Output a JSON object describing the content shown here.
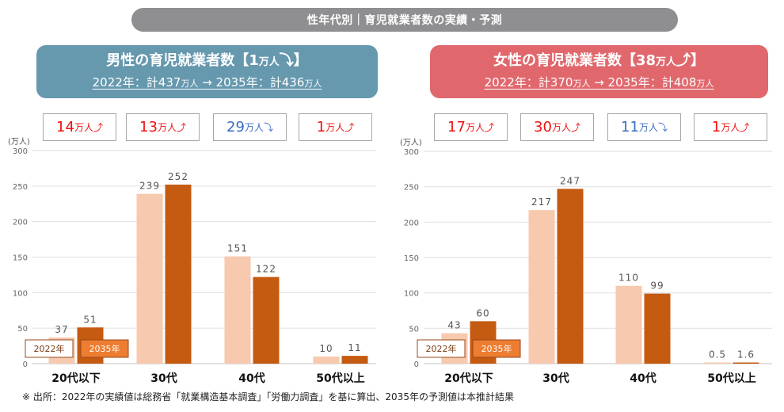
{
  "banner": {
    "title": "性年代別｜育児就業者数の実績・予測"
  },
  "colors": {
    "bar_2022": "#f7c9ae",
    "bar_2035": "#c55a11",
    "legend_2035_bg": "#ed7d31",
    "legend_border": "#9a4a1c",
    "up": "#ee1111",
    "down": "#3b6cc4",
    "male_header": "#6698ae",
    "female_header": "#e0686d",
    "banner": "#8f8f91"
  },
  "panels": [
    {
      "id": "male",
      "header": {
        "title_prefix": "男性の育児就業者数【",
        "title_value": "1",
        "title_unit": "万人",
        "title_arrow": "⤵",
        "title_suffix": "】",
        "sub_y1_label": "2022年：計",
        "sub_y1_value": "437",
        "sub_unit": "万人",
        "sub_arrow": " → ",
        "sub_y2_label": "2035年：計",
        "sub_y2_value": "436"
      },
      "changes": [
        {
          "value": "14",
          "unit": "万人",
          "arrow": "⤴",
          "direction": "up"
        },
        {
          "value": "13",
          "unit": "万人",
          "arrow": "⤴",
          "direction": "up"
        },
        {
          "value": "29",
          "unit": "万人",
          "arrow": "⤵",
          "direction": "down"
        },
        {
          "value": "1",
          "unit": "万人",
          "arrow": "⤴",
          "direction": "up"
        }
      ]
    },
    {
      "id": "female",
      "header": {
        "title_prefix": "女性の育児就業者数【",
        "title_value": "38",
        "title_unit": "万人",
        "title_arrow": "⤴",
        "title_suffix": "】",
        "sub_y1_label": "2022年：計",
        "sub_y1_value": "370",
        "sub_unit": "万人",
        "sub_arrow": " → ",
        "sub_y2_label": "2035年：計",
        "sub_y2_value": "408"
      },
      "changes": [
        {
          "value": "17",
          "unit": "万人",
          "arrow": "⤴",
          "direction": "up"
        },
        {
          "value": "30",
          "unit": "万人",
          "arrow": "⤴",
          "direction": "up"
        },
        {
          "value": "11",
          "unit": "万人",
          "arrow": "⤵",
          "direction": "down"
        },
        {
          "value": "1",
          "unit": "万人",
          "arrow": "⤴",
          "direction": "up"
        }
      ]
    }
  ],
  "chart_data": [
    {
      "type": "bar",
      "title": "男性の育児就業者数",
      "ylabel": "(万人)",
      "xlabel": "",
      "ylim": [
        0,
        300
      ],
      "yticks": [
        0,
        50,
        100,
        150,
        200,
        250,
        300
      ],
      "grid": true,
      "legend_position": "bottom-left",
      "categories": [
        "20代以下",
        "30代",
        "40代",
        "50代以上"
      ],
      "series": [
        {
          "name": "2022年",
          "values": [
            37,
            239,
            151,
            10
          ],
          "labels": [
            "37",
            "239",
            "151",
            "10"
          ]
        },
        {
          "name": "2035年",
          "values": [
            51,
            252,
            122,
            11
          ],
          "labels": [
            "51",
            "252",
            "122",
            "11"
          ]
        }
      ]
    },
    {
      "type": "bar",
      "title": "女性の育児就業者数",
      "ylabel": "(万人)",
      "xlabel": "",
      "ylim": [
        0,
        300
      ],
      "yticks": [
        0,
        50,
        100,
        150,
        200,
        250,
        300
      ],
      "grid": true,
      "legend_position": "bottom-left",
      "categories": [
        "20代以下",
        "30代",
        "40代",
        "50代以上"
      ],
      "series": [
        {
          "name": "2022年",
          "values": [
            43,
            217,
            110,
            0.5
          ],
          "labels": [
            "43",
            "217",
            "110",
            "0.5"
          ]
        },
        {
          "name": "2035年",
          "values": [
            60,
            247,
            99,
            1.6
          ],
          "labels": [
            "60",
            "247",
            "99",
            "1.6"
          ]
        }
      ]
    }
  ],
  "footnote": "※ 出所：2022年の実績値は総務省「就業構造基本調査」「労働力調査」を基に算出、2035年の予測値は本推計結果"
}
